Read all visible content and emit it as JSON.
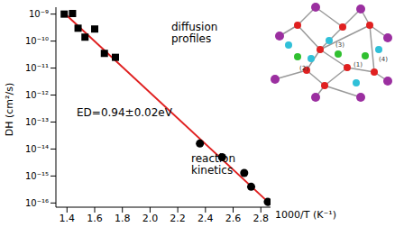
{
  "chart_data": {
    "type": "scatter",
    "x_label": "1000/T (K⁻¹)",
    "y_label": "DH (cm²/s)",
    "log": "y",
    "xlim": [
      1.32,
      2.87
    ],
    "ylim": [
      7e-17,
      1.8e-09
    ],
    "xticks": [
      1.4,
      1.6,
      1.8,
      {
        "value": 2,
        "label": "2.0"
      },
      2.2,
      2.4,
      2.6,
      2.8
    ],
    "yticks": [
      {
        "value": 1e-16,
        "label": "10⁻¹⁶"
      },
      {
        "value": 1e-15,
        "label": "10⁻¹⁵"
      },
      {
        "value": 1e-14,
        "label": "10⁻¹⁴"
      },
      {
        "value": 1e-13,
        "label": "10⁻¹³"
      },
      {
        "value": 1e-12,
        "label": "10⁻¹²"
      },
      {
        "value": 1e-11,
        "label": "10⁻¹¹"
      },
      {
        "value": 1e-10,
        "label": "10⁻¹⁰"
      },
      {
        "value": 1e-09,
        "label": "10⁻⁹"
      }
    ],
    "series": [
      {
        "name": "diffusion profiles",
        "color": "#000000",
        "marker": "square",
        "x": [
          1.38,
          1.44,
          1.48,
          1.53,
          1.6,
          1.67,
          1.75
        ],
        "values": [
          1e-09,
          1.05e-09,
          3e-10,
          1.4e-10,
          2.8e-10,
          3.5e-11,
          2.5e-11
        ]
      },
      {
        "name": "reaction kinetics",
        "color": "#000000",
        "marker": "circle",
        "x": [
          2.36,
          2.52,
          2.68,
          2.73,
          2.85
        ],
        "values": [
          1.6e-14,
          5e-15,
          1.3e-15,
          4e-16,
          1.1e-16
        ]
      }
    ],
    "fit": {
      "color": "#e02020",
      "line_style": "solid",
      "x": [
        1.38,
        2.86
      ],
      "values": [
        1.1e-09,
        1e-16
      ]
    },
    "annotations": [
      "ED=0.94±0.02eV"
    ],
    "inset_labels": [
      "(1)",
      "(2)",
      "(3)",
      "(4)"
    ]
  }
}
